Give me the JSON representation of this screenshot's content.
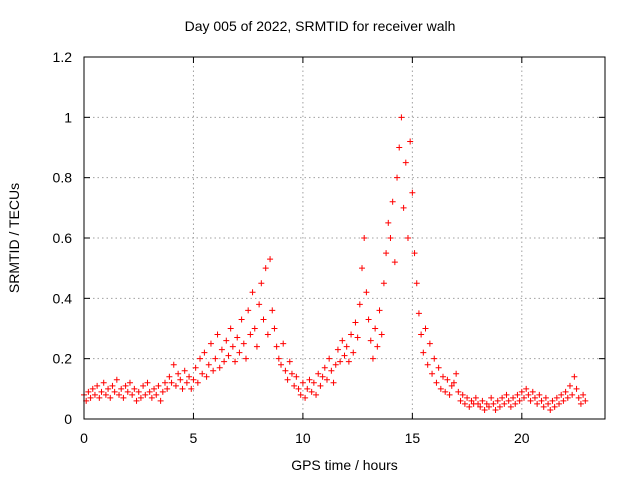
{
  "chart_data": {
    "type": "scatter",
    "title": "Day 005 of 2022, SRMTID for receiver walh",
    "xlabel": "GPS time / hours",
    "ylabel": "SRMTID / TECUs",
    "xlim": [
      0,
      23.8
    ],
    "ylim": [
      0,
      1.2
    ],
    "xticks": [
      0,
      5,
      10,
      15,
      20
    ],
    "yticks": [
      0,
      0.2,
      0.4,
      0.6,
      0.8,
      1,
      1.2
    ],
    "ytick_labels": [
      "0",
      "0.2",
      "0.4",
      "0.6",
      "0.8",
      "1",
      "1.2"
    ],
    "grid": true,
    "marker": "+",
    "color": "#ff0000",
    "series": [
      {
        "name": "SRMTID",
        "points": [
          [
            0.0,
            0.08
          ],
          [
            0.1,
            0.06
          ],
          [
            0.2,
            0.09
          ],
          [
            0.3,
            0.07
          ],
          [
            0.4,
            0.1
          ],
          [
            0.5,
            0.08
          ],
          [
            0.6,
            0.11
          ],
          [
            0.7,
            0.07
          ],
          [
            0.8,
            0.09
          ],
          [
            0.9,
            0.12
          ],
          [
            1.0,
            0.08
          ],
          [
            1.1,
            0.1
          ],
          [
            1.2,
            0.07
          ],
          [
            1.3,
            0.11
          ],
          [
            1.4,
            0.09
          ],
          [
            1.5,
            0.13
          ],
          [
            1.6,
            0.08
          ],
          [
            1.7,
            0.1
          ],
          [
            1.8,
            0.07
          ],
          [
            1.9,
            0.11
          ],
          [
            2.0,
            0.09
          ],
          [
            2.1,
            0.12
          ],
          [
            2.2,
            0.08
          ],
          [
            2.3,
            0.1
          ],
          [
            2.4,
            0.06
          ],
          [
            2.5,
            0.09
          ],
          [
            2.6,
            0.07
          ],
          [
            2.7,
            0.11
          ],
          [
            2.8,
            0.08
          ],
          [
            2.9,
            0.12
          ],
          [
            3.0,
            0.09
          ],
          [
            3.1,
            0.07
          ],
          [
            3.2,
            0.1
          ],
          [
            3.3,
            0.08
          ],
          [
            3.4,
            0.11
          ],
          [
            3.5,
            0.06
          ],
          [
            3.6,
            0.09
          ],
          [
            3.7,
            0.12
          ],
          [
            3.8,
            0.1
          ],
          [
            3.9,
            0.14
          ],
          [
            4.0,
            0.12
          ],
          [
            4.1,
            0.18
          ],
          [
            4.2,
            0.11
          ],
          [
            4.3,
            0.15
          ],
          [
            4.4,
            0.13
          ],
          [
            4.5,
            0.1
          ],
          [
            4.6,
            0.16
          ],
          [
            4.7,
            0.12
          ],
          [
            4.8,
            0.14
          ],
          [
            4.9,
            0.1
          ],
          [
            5.0,
            0.13
          ],
          [
            5.1,
            0.17
          ],
          [
            5.2,
            0.12
          ],
          [
            5.3,
            0.2
          ],
          [
            5.4,
            0.15
          ],
          [
            5.5,
            0.22
          ],
          [
            5.6,
            0.14
          ],
          [
            5.7,
            0.18
          ],
          [
            5.8,
            0.25
          ],
          [
            5.9,
            0.16
          ],
          [
            6.0,
            0.2
          ],
          [
            6.1,
            0.28
          ],
          [
            6.2,
            0.17
          ],
          [
            6.3,
            0.23
          ],
          [
            6.4,
            0.19
          ],
          [
            6.5,
            0.26
          ],
          [
            6.6,
            0.21
          ],
          [
            6.7,
            0.3
          ],
          [
            6.8,
            0.24
          ],
          [
            6.9,
            0.19
          ],
          [
            7.0,
            0.27
          ],
          [
            7.1,
            0.22
          ],
          [
            7.2,
            0.33
          ],
          [
            7.3,
            0.25
          ],
          [
            7.4,
            0.2
          ],
          [
            7.5,
            0.36
          ],
          [
            7.6,
            0.28
          ],
          [
            7.7,
            0.42
          ],
          [
            7.8,
            0.3
          ],
          [
            7.9,
            0.24
          ],
          [
            8.0,
            0.38
          ],
          [
            8.1,
            0.45
          ],
          [
            8.2,
            0.33
          ],
          [
            8.3,
            0.5
          ],
          [
            8.4,
            0.28
          ],
          [
            8.5,
            0.53
          ],
          [
            8.6,
            0.36
          ],
          [
            8.7,
            0.3
          ],
          [
            8.8,
            0.24
          ],
          [
            8.9,
            0.2
          ],
          [
            9.0,
            0.18
          ],
          [
            9.1,
            0.25
          ],
          [
            9.2,
            0.16
          ],
          [
            9.3,
            0.13
          ],
          [
            9.4,
            0.19
          ],
          [
            9.5,
            0.15
          ],
          [
            9.6,
            0.11
          ],
          [
            9.7,
            0.14
          ],
          [
            9.8,
            0.1
          ],
          [
            9.9,
            0.08
          ],
          [
            10.0,
            0.12
          ],
          [
            10.1,
            0.07
          ],
          [
            10.2,
            0.1
          ],
          [
            10.3,
            0.13
          ],
          [
            10.4,
            0.09
          ],
          [
            10.5,
            0.12
          ],
          [
            10.6,
            0.08
          ],
          [
            10.7,
            0.15
          ],
          [
            10.8,
            0.11
          ],
          [
            10.9,
            0.14
          ],
          [
            11.0,
            0.17
          ],
          [
            11.1,
            0.13
          ],
          [
            11.2,
            0.2
          ],
          [
            11.3,
            0.16
          ],
          [
            11.4,
            0.12
          ],
          [
            11.5,
            0.18
          ],
          [
            11.6,
            0.23
          ],
          [
            11.7,
            0.19
          ],
          [
            11.8,
            0.26
          ],
          [
            11.9,
            0.21
          ],
          [
            12.0,
            0.24
          ],
          [
            12.1,
            0.19
          ],
          [
            12.2,
            0.28
          ],
          [
            12.3,
            0.22
          ],
          [
            12.4,
            0.32
          ],
          [
            12.5,
            0.27
          ],
          [
            12.6,
            0.38
          ],
          [
            12.7,
            0.5
          ],
          [
            12.8,
            0.6
          ],
          [
            12.9,
            0.42
          ],
          [
            13.0,
            0.33
          ],
          [
            13.1,
            0.26
          ],
          [
            13.2,
            0.2
          ],
          [
            13.3,
            0.3
          ],
          [
            13.4,
            0.24
          ],
          [
            13.5,
            0.36
          ],
          [
            13.6,
            0.28
          ],
          [
            13.7,
            0.45
          ],
          [
            13.8,
            0.55
          ],
          [
            13.9,
            0.65
          ],
          [
            14.0,
            0.6
          ],
          [
            14.1,
            0.72
          ],
          [
            14.2,
            0.52
          ],
          [
            14.3,
            0.8
          ],
          [
            14.4,
            0.9
          ],
          [
            14.5,
            1.0
          ],
          [
            14.6,
            0.7
          ],
          [
            14.7,
            0.85
          ],
          [
            14.8,
            0.6
          ],
          [
            14.9,
            0.92
          ],
          [
            15.0,
            0.75
          ],
          [
            15.1,
            0.55
          ],
          [
            15.2,
            0.45
          ],
          [
            15.3,
            0.35
          ],
          [
            15.4,
            0.28
          ],
          [
            15.5,
            0.22
          ],
          [
            15.6,
            0.3
          ],
          [
            15.7,
            0.18
          ],
          [
            15.8,
            0.25
          ],
          [
            15.9,
            0.15
          ],
          [
            16.0,
            0.2
          ],
          [
            16.1,
            0.12
          ],
          [
            16.2,
            0.17
          ],
          [
            16.3,
            0.1
          ],
          [
            16.4,
            0.14
          ],
          [
            16.5,
            0.09
          ],
          [
            16.6,
            0.13
          ],
          [
            16.7,
            0.08
          ],
          [
            16.8,
            0.11
          ],
          [
            16.9,
            0.12
          ],
          [
            17.0,
            0.15
          ],
          [
            17.1,
            0.09
          ],
          [
            17.2,
            0.06
          ],
          [
            17.3,
            0.08
          ],
          [
            17.4,
            0.05
          ],
          [
            17.5,
            0.07
          ],
          [
            17.6,
            0.04
          ],
          [
            17.7,
            0.06
          ],
          [
            17.8,
            0.05
          ],
          [
            17.9,
            0.07
          ],
          [
            18.0,
            0.05
          ],
          [
            18.1,
            0.04
          ],
          [
            18.2,
            0.06
          ],
          [
            18.3,
            0.03
          ],
          [
            18.4,
            0.05
          ],
          [
            18.5,
            0.04
          ],
          [
            18.6,
            0.07
          ],
          [
            18.7,
            0.05
          ],
          [
            18.8,
            0.03
          ],
          [
            18.9,
            0.06
          ],
          [
            19.0,
            0.04
          ],
          [
            19.1,
            0.07
          ],
          [
            19.2,
            0.05
          ],
          [
            19.3,
            0.08
          ],
          [
            19.4,
            0.06
          ],
          [
            19.5,
            0.04
          ],
          [
            19.6,
            0.07
          ],
          [
            19.7,
            0.05
          ],
          [
            19.8,
            0.08
          ],
          [
            19.9,
            0.06
          ],
          [
            20.0,
            0.09
          ],
          [
            20.1,
            0.07
          ],
          [
            20.2,
            0.1
          ],
          [
            20.3,
            0.08
          ],
          [
            20.4,
            0.06
          ],
          [
            20.5,
            0.09
          ],
          [
            20.6,
            0.07
          ],
          [
            20.7,
            0.05
          ],
          [
            20.8,
            0.08
          ],
          [
            20.9,
            0.06
          ],
          [
            21.0,
            0.04
          ],
          [
            21.1,
            0.07
          ],
          [
            21.2,
            0.05
          ],
          [
            21.3,
            0.03
          ],
          [
            21.4,
            0.06
          ],
          [
            21.5,
            0.04
          ],
          [
            21.6,
            0.07
          ],
          [
            21.7,
            0.05
          ],
          [
            21.8,
            0.08
          ],
          [
            21.9,
            0.06
          ],
          [
            22.0,
            0.09
          ],
          [
            22.1,
            0.07
          ],
          [
            22.2,
            0.11
          ],
          [
            22.3,
            0.08
          ],
          [
            22.4,
            0.14
          ],
          [
            22.5,
            0.1
          ],
          [
            22.6,
            0.07
          ],
          [
            22.7,
            0.05
          ],
          [
            22.8,
            0.08
          ],
          [
            22.9,
            0.06
          ]
        ]
      }
    ]
  }
}
